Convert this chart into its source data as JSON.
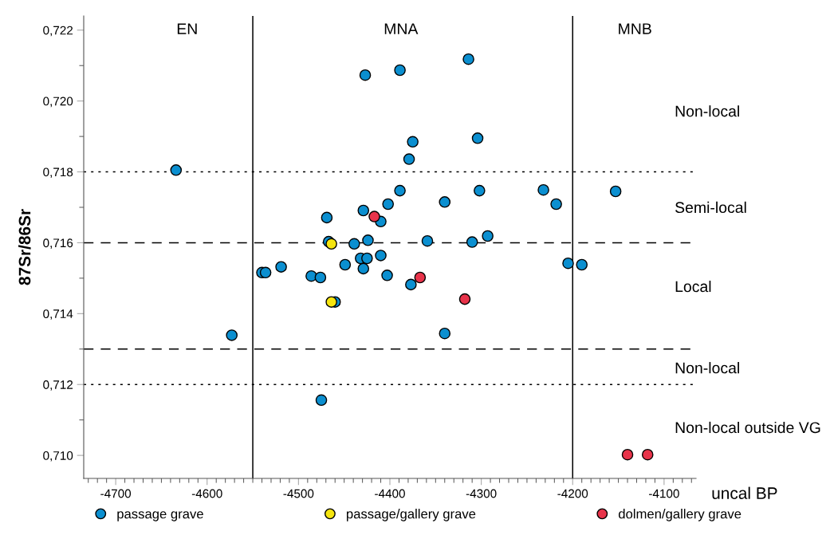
{
  "chart_data": {
    "type": "scatter",
    "ylabel": "87Sr/86Sr",
    "xlabel": "uncal BP",
    "xlim": [
      -4735,
      -4065
    ],
    "ylim": [
      0.70935,
      0.7224
    ],
    "xticks": [
      -4700,
      -4600,
      -4500,
      -4400,
      -4300,
      -4200,
      -4100,
      {
        "value": -4730,
        "label": null
      },
      {
        "value": -4720,
        "label": null
      },
      {
        "value": -4710,
        "label": null
      },
      {
        "value": -4690,
        "label": null
      },
      {
        "value": -4680,
        "label": null
      },
      {
        "value": -4670,
        "label": null
      },
      {
        "value": -4660,
        "label": null
      },
      {
        "value": -4650,
        "label": null
      },
      {
        "value": -4640,
        "label": null
      },
      {
        "value": -4630,
        "label": null
      },
      {
        "value": -4620,
        "label": null
      },
      {
        "value": -4610,
        "label": null
      },
      {
        "value": -4590,
        "label": null
      },
      {
        "value": -4580,
        "label": null
      },
      {
        "value": -4570,
        "label": null
      },
      {
        "value": -4560,
        "label": null
      },
      {
        "value": -4550,
        "label": null
      },
      {
        "value": -4540,
        "label": null
      },
      {
        "value": -4530,
        "label": null
      },
      {
        "value": -4520,
        "label": null
      },
      {
        "value": -4510,
        "label": null
      },
      {
        "value": -4490,
        "label": null
      },
      {
        "value": -4480,
        "label": null
      },
      {
        "value": -4470,
        "label": null
      },
      {
        "value": -4460,
        "label": null
      },
      {
        "value": -4450,
        "label": null
      },
      {
        "value": -4440,
        "label": null
      },
      {
        "value": -4430,
        "label": null
      },
      {
        "value": -4420,
        "label": null
      },
      {
        "value": -4410,
        "label": null
      },
      {
        "value": -4390,
        "label": null
      },
      {
        "value": -4380,
        "label": null
      },
      {
        "value": -4370,
        "label": null
      },
      {
        "value": -4360,
        "label": null
      },
      {
        "value": -4350,
        "label": null
      },
      {
        "value": -4340,
        "label": null
      },
      {
        "value": -4330,
        "label": null
      },
      {
        "value": -4320,
        "label": null
      },
      {
        "value": -4310,
        "label": null
      },
      {
        "value": -4290,
        "label": null
      },
      {
        "value": -4280,
        "label": null
      },
      {
        "value": -4270,
        "label": null
      },
      {
        "value": -4260,
        "label": null
      },
      {
        "value": -4250,
        "label": null
      },
      {
        "value": -4240,
        "label": null
      },
      {
        "value": -4230,
        "label": null
      },
      {
        "value": -4220,
        "label": null
      },
      {
        "value": -4210,
        "label": null
      },
      {
        "value": -4190,
        "label": null
      },
      {
        "value": -4180,
        "label": null
      },
      {
        "value": -4170,
        "label": null
      },
      {
        "value": -4160,
        "label": null
      },
      {
        "value": -4150,
        "label": null
      },
      {
        "value": -4140,
        "label": null
      },
      {
        "value": -4130,
        "label": null
      },
      {
        "value": -4120,
        "label": null
      },
      {
        "value": -4110,
        "label": null
      },
      {
        "value": -4090,
        "label": null
      },
      {
        "value": -4080,
        "label": null
      },
      {
        "value": -4070,
        "label": null
      }
    ],
    "yticks": [
      {
        "value": 0.71,
        "label": "0,710"
      },
      {
        "value": 0.712,
        "label": "0,712"
      },
      {
        "value": 0.714,
        "label": "0,714"
      },
      {
        "value": 0.716,
        "label": "0,716"
      },
      {
        "value": 0.718,
        "label": "0,718"
      },
      {
        "value": 0.72,
        "label": "0,720"
      },
      {
        "value": 0.722,
        "label": "0,722"
      },
      {
        "value": 0.711,
        "label": null
      },
      {
        "value": 0.713,
        "label": null
      },
      {
        "value": 0.715,
        "label": null
      },
      {
        "value": 0.717,
        "label": null
      },
      {
        "value": 0.719,
        "label": null
      },
      {
        "value": 0.721,
        "label": null
      }
    ],
    "marker": "circle",
    "legend": "bottom",
    "grid": false,
    "series": [
      {
        "name": "passage grave",
        "color": "#0b8fd0",
        "x": [
          -4634,
          -4573,
          -4427,
          -4540,
          -4536,
          -4519,
          -4486,
          -4476,
          -4469,
          -4467,
          -4439,
          -4449,
          -4432,
          -4425,
          -4429,
          -4424,
          -4429,
          -4410,
          -4410,
          -4403,
          -4460,
          -4475,
          -4389,
          -4314,
          -4375,
          -4379,
          -4304,
          -4389,
          -4402,
          -4340,
          -4302,
          -4232,
          -4218,
          -4153,
          -4359,
          -4310,
          -4293,
          -4377,
          -4340,
          -4205,
          -4190
        ],
        "values": [
          0.71805,
          0.71339,
          0.72073,
          0.71516,
          0.71516,
          0.71532,
          0.71506,
          0.71502,
          0.71671,
          0.71603,
          0.71597,
          0.71538,
          0.71556,
          0.71556,
          0.71527,
          0.71607,
          0.71691,
          0.7166,
          0.71564,
          0.71508,
          0.71433,
          0.71156,
          0.72087,
          0.72118,
          0.71885,
          0.71836,
          0.71895,
          0.71747,
          0.71709,
          0.71715,
          0.71747,
          0.71749,
          0.71709,
          0.71745,
          0.71605,
          0.71602,
          0.71619,
          0.71482,
          0.71344,
          0.71542,
          0.71538
        ]
      },
      {
        "name": "passage/gallery grave",
        "color": "#f5e50f",
        "x": [
          -4464,
          -4464
        ],
        "values": [
          0.71597,
          0.71433
        ]
      },
      {
        "name": "dolmen/gallery grave",
        "color": "#e8334a",
        "x": [
          -4417,
          -4367,
          -4318,
          -4140,
          -4118
        ],
        "values": [
          0.71674,
          0.71502,
          0.71441,
          0.71002,
          0.71002
        ]
      }
    ],
    "ref_lines": [
      {
        "axis": "y",
        "value": 0.718,
        "line_style": "dotted",
        "color": "#000000"
      },
      {
        "axis": "y",
        "value": 0.716,
        "line_style": "dashed",
        "color": "#000000"
      },
      {
        "axis": "y",
        "value": 0.713,
        "line_style": "dashed",
        "color": "#000000"
      },
      {
        "axis": "y",
        "value": 0.712,
        "line_style": "dotted",
        "color": "#000000"
      },
      {
        "axis": "x",
        "value": -4550,
        "line_style": "solid",
        "color": "#000000"
      },
      {
        "axis": "x",
        "value": -4200,
        "line_style": "solid",
        "color": "#000000"
      }
    ],
    "annotations": [
      "EN",
      "MNA",
      "MNB",
      "Non-local",
      "Semi-local",
      "Local",
      "Non-local",
      "Non-local outside VG"
    ]
  }
}
